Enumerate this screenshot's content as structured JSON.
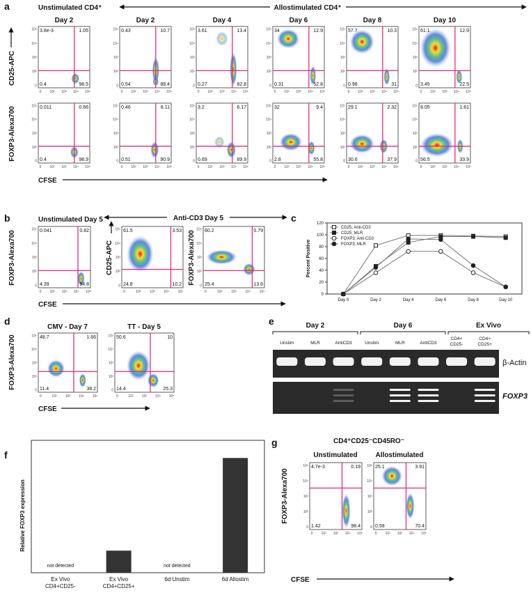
{
  "panel_labels": [
    "a",
    "b",
    "c",
    "d",
    "e",
    "f",
    "g"
  ],
  "axis_ticks": [
    "0",
    "10²",
    "10³",
    "10⁴",
    "10⁵"
  ],
  "a": {
    "left_header": "Unstimulated CD4⁺",
    "right_header": "Allostimulated CD4⁺",
    "days": [
      "Day 2",
      "Day 2",
      "Day 4",
      "Day 6",
      "Day 8",
      "Day 10"
    ],
    "y_labels": [
      "CD25-APC",
      "FOXP3-Alexa700"
    ],
    "x_label": "CFSE",
    "quadrants": [
      [
        [
          "3.8e-3",
          "1.05",
          "0.4",
          "98.5"
        ],
        [
          "0.43",
          "10.7",
          "0.54",
          "88.4"
        ],
        [
          "3.61",
          "13.4",
          "0.27",
          "82.8"
        ],
        [
          "34",
          "12.9",
          "0.31",
          "52.8"
        ],
        [
          "57.7",
          "10.3",
          "0.98",
          "31"
        ],
        [
          "61.1",
          "12.9",
          "3.45",
          "22.5"
        ]
      ],
      [
        [
          "0.011",
          "0.66",
          "0.4",
          "98.9"
        ],
        [
          "0.46",
          "8.11",
          "0.51",
          "90.9"
        ],
        [
          "3.2",
          "6.17",
          "0.69",
          "89.9"
        ],
        [
          "32",
          "9.4",
          "2.8",
          "55.8"
        ],
        [
          "29.1",
          "2.32",
          "30.6",
          "37.9"
        ],
        [
          "8.05",
          "1.61",
          "56.5",
          "33.9"
        ]
      ]
    ]
  },
  "b": {
    "titles": [
      "Unstimulated Day 5",
      "Anti-CD3 Day 5"
    ],
    "y_labels": [
      "FOXP3-Alexa700",
      "CD25-APC",
      "FOXP3-Alexa700"
    ],
    "x_label": "CFSE",
    "quadrants": [
      [
        "0.041",
        "0.82",
        "4.39",
        "94.8"
      ],
      [
        "61.5",
        "3.53",
        "24.8",
        "10.2"
      ],
      [
        "60.2",
        "0.79",
        "25.4",
        "13.6"
      ]
    ]
  },
  "d": {
    "titles": [
      "CMV - Day 7",
      "TT - Day 5"
    ],
    "y_label": "FOXP3-Alexa700",
    "x_label": "CFSE",
    "quadrants": [
      [
        "48.7",
        "1.66",
        "11.4",
        "38.2"
      ],
      [
        "50.6",
        "10",
        "14.4",
        "25.3"
      ]
    ]
  },
  "e": {
    "groups": [
      "Day 2",
      "Day 6",
      "Ex Vivo"
    ],
    "lanes": [
      [
        "Unstim"
      ],
      [
        "MLR"
      ],
      [
        "AntiCD3"
      ],
      [
        "Unstim"
      ],
      [
        "MLR"
      ],
      [
        "AntiCD3"
      ],
      [
        "CD4+",
        "CD25-"
      ],
      [
        "CD4+",
        "CD25+"
      ]
    ],
    "bands": [
      "β-Actin",
      "FOXP3"
    ]
  },
  "g": {
    "title": "CD4⁺CD25⁻CD45RO⁻",
    "titles": [
      "Unstimulated",
      "Allostimulated"
    ],
    "y_label": "FOXP3-Alexa700",
    "x_label": "CFSE",
    "quadrants": [
      [
        "4.7e-3",
        "0.19",
        "1.42",
        "98.4"
      ],
      [
        "25.1",
        "3.91",
        "0.58",
        "70.4"
      ]
    ]
  },
  "chart_data": [
    {
      "type": "line",
      "y_label": "Percent Positive",
      "categories": [
        "Day 0",
        "Day 2",
        "Day 4",
        "Day 6",
        "Day 8",
        "Day 10"
      ],
      "ylim": [
        0,
        120
      ],
      "yticks": [
        0,
        20,
        40,
        60,
        80,
        100,
        120
      ],
      "legend": "top-left",
      "series": [
        {
          "name": "CD25; Anti-CD3",
          "marker": "square",
          "filled": false,
          "color": "#222",
          "values": [
            0,
            82,
            99,
            99,
            98,
            97
          ]
        },
        {
          "name": "CD25; MLR",
          "marker": "square",
          "filled": true,
          "color": "#222",
          "values": [
            0,
            47,
            87,
            97,
            97,
            95
          ]
        },
        {
          "name": "FOXP3; Anti-CD3",
          "marker": "circle",
          "filled": false,
          "color": "#222",
          "values": [
            0,
            36,
            72,
            72,
            36,
            12
          ]
        },
        {
          "name": "FOXP3; MLR",
          "marker": "circle",
          "filled": true,
          "color": "#222",
          "values": [
            0,
            45,
            93,
            92,
            48,
            12
          ]
        }
      ]
    },
    {
      "type": "bar",
      "y_label": "Relative FOXP3 expression",
      "categories": [
        [
          "Ex Vivo",
          "CD4+CD25-"
        ],
        [
          "Ex Vivo",
          "CD4+CD25+"
        ],
        [
          "6d Unstim"
        ],
        [
          "6d Allostim"
        ]
      ],
      "values": [
        null,
        1,
        null,
        5.2
      ],
      "value_labels": [
        "not detected",
        null,
        "not detected",
        null
      ],
      "ylim": [
        0,
        6
      ],
      "color": "#333"
    }
  ]
}
